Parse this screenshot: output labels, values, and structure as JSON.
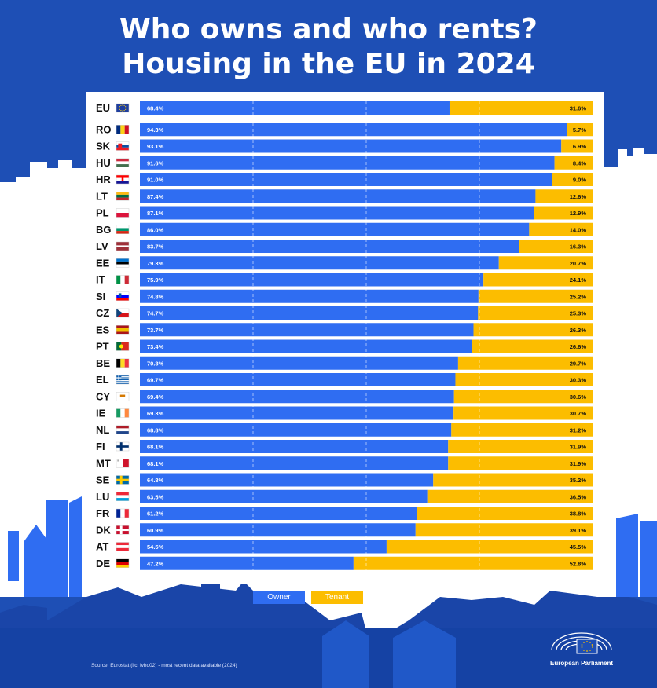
{
  "title_line1": "Who owns and who rents?",
  "title_line2": "Housing in the EU in 2024",
  "legend": {
    "owner": "Owner",
    "tenant": "Tenant"
  },
  "source": "Source: Eurostat (ilc_lvho02) - most recent data available (2024)",
  "publisher": "European Parliament",
  "colors": {
    "background": "#1e4fb5",
    "owner": "#2f6df2",
    "tenant": "#fcbd00",
    "panel": "#ffffff"
  },
  "chart_data": {
    "type": "bar",
    "orientation": "horizontal",
    "stacked": true,
    "xlim": [
      0,
      100
    ],
    "categories": [
      "EU",
      "RO",
      "SK",
      "HU",
      "HR",
      "LT",
      "PL",
      "BG",
      "LV",
      "EE",
      "IT",
      "SI",
      "CZ",
      "ES",
      "PT",
      "BE",
      "EL",
      "CY",
      "IE",
      "NL",
      "FI",
      "MT",
      "SE",
      "LU",
      "FR",
      "DK",
      "AT",
      "DE"
    ],
    "series": [
      {
        "name": "Owner",
        "color": "#2f6df2",
        "values": [
          68.4,
          94.3,
          93.1,
          91.6,
          91.0,
          87.4,
          87.1,
          86.0,
          83.7,
          79.3,
          75.9,
          74.8,
          74.7,
          73.7,
          73.4,
          70.3,
          69.7,
          69.4,
          69.3,
          68.8,
          68.1,
          68.1,
          64.8,
          63.5,
          61.2,
          60.9,
          54.5,
          47.2
        ],
        "labels": [
          "68.4%",
          "94.3%",
          "93.1%",
          "91.6%",
          "91.0%",
          "87.4%",
          "87.1%",
          "86.0%",
          "83.7%",
          "79.3%",
          "75.9%",
          "74.8%",
          "74.7%",
          "73.7%",
          "73.4%",
          "70.3%",
          "69.7%",
          "69.4%",
          "69.3%",
          "68.8%",
          "68.1%",
          "68.1%",
          "64.8%",
          "63.5%",
          "61.2%",
          "60.9%",
          "54.5%",
          "47.2%"
        ]
      },
      {
        "name": "Tenant",
        "color": "#fcbd00",
        "values": [
          31.6,
          5.7,
          6.9,
          8.4,
          9.0,
          12.6,
          12.9,
          14.0,
          16.3,
          20.7,
          24.1,
          25.2,
          25.3,
          26.3,
          26.6,
          29.7,
          30.3,
          30.6,
          30.7,
          31.2,
          31.9,
          31.9,
          35.2,
          36.5,
          38.8,
          39.1,
          45.5,
          52.8
        ],
        "labels": [
          "31.6%",
          "5.7%",
          "6.9%",
          "8.4%",
          "9.0%",
          "12.6%",
          "12.9%",
          "14.0%",
          "16.3%",
          "20.7%",
          "24.1%",
          "25.2%",
          "25.3%",
          "26.3%",
          "26.6%",
          "29.7%",
          "30.3%",
          "30.6%",
          "30.7%",
          "31.2%",
          "31.9%",
          "31.9%",
          "35.2%",
          "36.5%",
          "38.8%",
          "39.1%",
          "45.5%",
          "52.8%"
        ]
      }
    ],
    "flags": {
      "EU": "eu-flag-icon",
      "RO": "romania-flag-icon",
      "SK": "slovakia-flag-icon",
      "HU": "hungary-flag-icon",
      "HR": "croatia-flag-icon",
      "LT": "lithuania-flag-icon",
      "PL": "poland-flag-icon",
      "BG": "bulgaria-flag-icon",
      "LV": "latvia-flag-icon",
      "EE": "estonia-flag-icon",
      "IT": "italy-flag-icon",
      "SI": "slovenia-flag-icon",
      "CZ": "czechia-flag-icon",
      "ES": "spain-flag-icon",
      "PT": "portugal-flag-icon",
      "BE": "belgium-flag-icon",
      "EL": "greece-flag-icon",
      "CY": "cyprus-flag-icon",
      "IE": "ireland-flag-icon",
      "NL": "netherlands-flag-icon",
      "FI": "finland-flag-icon",
      "MT": "malta-flag-icon",
      "SE": "sweden-flag-icon",
      "LU": "luxembourg-flag-icon",
      "FR": "france-flag-icon",
      "DK": "denmark-flag-icon",
      "AT": "austria-flag-icon",
      "DE": "germany-flag-icon"
    },
    "grid": true
  }
}
